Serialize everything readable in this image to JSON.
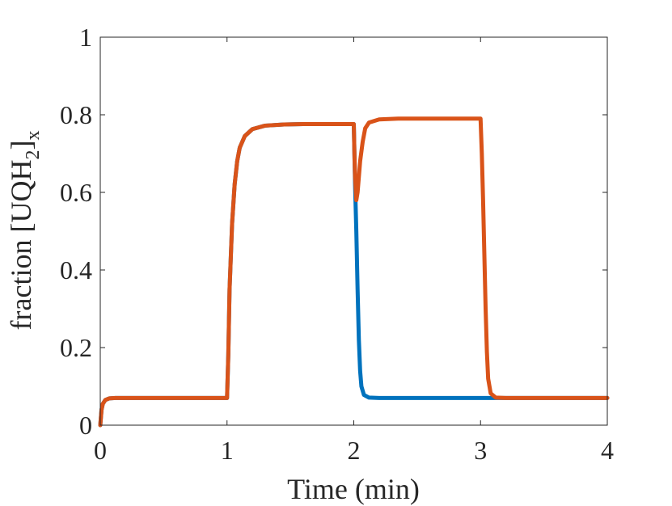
{
  "chart_data": {
    "type": "line",
    "xlabel": "Time (min)",
    "ylabel": {
      "prefix": "fraction [UQH",
      "sub1": "2",
      "mid": "]",
      "sub2": "x"
    },
    "xlim": [
      0,
      4
    ],
    "ylim": [
      0,
      1
    ],
    "xticks": [
      "0",
      "1",
      "2",
      "3",
      "4"
    ],
    "yticks": [
      "0",
      "0.2",
      "0.4",
      "0.6",
      "0.8",
      "1"
    ],
    "grid": false,
    "box": true,
    "series": [
      {
        "color": "#0072BD",
        "points": [
          [
            0,
            0
          ],
          [
            0.01,
            0.04
          ],
          [
            0.02,
            0.055
          ],
          [
            0.04,
            0.065
          ],
          [
            0.07,
            0.069
          ],
          [
            0.12,
            0.07
          ],
          [
            1.0,
            0.07
          ],
          [
            1.01,
            0.18
          ],
          [
            1.02,
            0.35
          ],
          [
            1.04,
            0.52
          ],
          [
            1.06,
            0.62
          ],
          [
            1.08,
            0.68
          ],
          [
            1.1,
            0.715
          ],
          [
            1.14,
            0.745
          ],
          [
            1.2,
            0.763
          ],
          [
            1.3,
            0.772
          ],
          [
            1.45,
            0.775
          ],
          [
            1.6,
            0.776
          ],
          [
            2.0,
            0.776
          ],
          [
            2.005,
            0.7
          ],
          [
            2.01,
            0.62
          ],
          [
            2.02,
            0.5
          ],
          [
            2.03,
            0.35
          ],
          [
            2.04,
            0.22
          ],
          [
            2.05,
            0.14
          ],
          [
            2.06,
            0.1
          ],
          [
            2.08,
            0.078
          ],
          [
            2.12,
            0.071
          ],
          [
            2.2,
            0.07
          ],
          [
            4.0,
            0.07
          ]
        ]
      },
      {
        "color": "#D95319",
        "points": [
          [
            0,
            0
          ],
          [
            0.01,
            0.04
          ],
          [
            0.02,
            0.055
          ],
          [
            0.04,
            0.065
          ],
          [
            0.07,
            0.069
          ],
          [
            0.12,
            0.07
          ],
          [
            1.0,
            0.07
          ],
          [
            1.01,
            0.18
          ],
          [
            1.02,
            0.35
          ],
          [
            1.04,
            0.52
          ],
          [
            1.06,
            0.62
          ],
          [
            1.08,
            0.68
          ],
          [
            1.1,
            0.715
          ],
          [
            1.14,
            0.745
          ],
          [
            1.2,
            0.763
          ],
          [
            1.3,
            0.772
          ],
          [
            1.45,
            0.775
          ],
          [
            1.6,
            0.776
          ],
          [
            2.0,
            0.776
          ],
          [
            2.005,
            0.7
          ],
          [
            2.01,
            0.64
          ],
          [
            2.02,
            0.58
          ],
          [
            2.03,
            0.6
          ],
          [
            2.05,
            0.68
          ],
          [
            2.07,
            0.73
          ],
          [
            2.09,
            0.765
          ],
          [
            2.12,
            0.78
          ],
          [
            2.2,
            0.788
          ],
          [
            2.35,
            0.79
          ],
          [
            3.0,
            0.79
          ],
          [
            3.01,
            0.7
          ],
          [
            3.02,
            0.58
          ],
          [
            3.03,
            0.44
          ],
          [
            3.04,
            0.3
          ],
          [
            3.05,
            0.19
          ],
          [
            3.06,
            0.12
          ],
          [
            3.08,
            0.082
          ],
          [
            3.12,
            0.071
          ],
          [
            3.2,
            0.07
          ],
          [
            4.0,
            0.07
          ]
        ]
      }
    ]
  }
}
